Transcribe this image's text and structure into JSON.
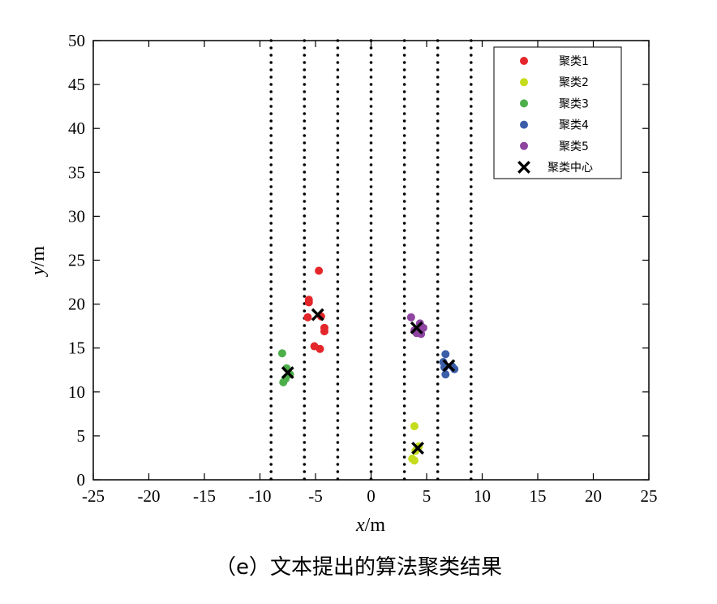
{
  "caption": "（e）文本提出的算法聚类结果",
  "chart_data": {
    "type": "scatter",
    "xlabel": {
      "var": "x",
      "unit": "/m"
    },
    "ylabel": {
      "var": "y",
      "unit": "/m"
    },
    "xlim": [
      -25,
      25
    ],
    "ylim": [
      0,
      50
    ],
    "xticks": [
      -25,
      -20,
      -15,
      -10,
      -5,
      0,
      5,
      10,
      15,
      20,
      25
    ],
    "yticks": [
      0,
      5,
      10,
      15,
      20,
      25,
      30,
      35,
      40,
      45,
      50
    ],
    "grid": false,
    "legend_position": "top-right",
    "vlines": {
      "style": "dotted",
      "x": [
        -9,
        -6,
        -3,
        0,
        3,
        6,
        9
      ]
    },
    "series": [
      {
        "name": "聚类1",
        "color": "#e3262a",
        "marker": "circle",
        "points": [
          [
            -4.7,
            23.8
          ],
          [
            -5.6,
            20.5
          ],
          [
            -5.6,
            20.2
          ],
          [
            -5.7,
            18.5
          ],
          [
            -4.5,
            18.6
          ],
          [
            -4.2,
            17.3
          ],
          [
            -4.2,
            16.9
          ],
          [
            -5.1,
            15.2
          ],
          [
            -4.6,
            14.9
          ]
        ]
      },
      {
        "name": "聚类2",
        "color": "#c5dc1c",
        "marker": "circle",
        "points": [
          [
            3.9,
            6.1
          ],
          [
            4.3,
            3.8
          ],
          [
            4.0,
            3.3
          ],
          [
            3.7,
            2.4
          ],
          [
            3.9,
            2.2
          ]
        ]
      },
      {
        "name": "聚类3",
        "color": "#4daf4a",
        "marker": "circle",
        "points": [
          [
            -8.0,
            14.4
          ],
          [
            -7.6,
            12.7
          ],
          [
            -7.3,
            12.0
          ],
          [
            -7.7,
            11.5
          ],
          [
            -7.9,
            11.1
          ]
        ]
      },
      {
        "name": "聚类4",
        "color": "#3b5ea8",
        "marker": "circle",
        "points": [
          [
            6.7,
            14.3
          ],
          [
            6.5,
            13.4
          ],
          [
            6.6,
            12.8
          ],
          [
            7.3,
            12.9
          ],
          [
            7.5,
            12.6
          ],
          [
            6.7,
            12.0
          ]
        ]
      },
      {
        "name": "聚类5",
        "color": "#8e44a0",
        "marker": "circle",
        "points": [
          [
            3.6,
            18.5
          ],
          [
            4.4,
            17.8
          ],
          [
            4.7,
            17.3
          ],
          [
            3.9,
            17.0
          ],
          [
            4.3,
            16.9
          ],
          [
            4.1,
            16.7
          ],
          [
            4.5,
            16.6
          ]
        ]
      },
      {
        "name": "聚类中心",
        "color": "#000000",
        "marker": "x",
        "points": [
          [
            -4.8,
            18.8
          ],
          [
            4.2,
            3.6
          ],
          [
            -7.5,
            12.2
          ],
          [
            7.0,
            13.0
          ],
          [
            4.1,
            17.3
          ]
        ]
      }
    ]
  }
}
